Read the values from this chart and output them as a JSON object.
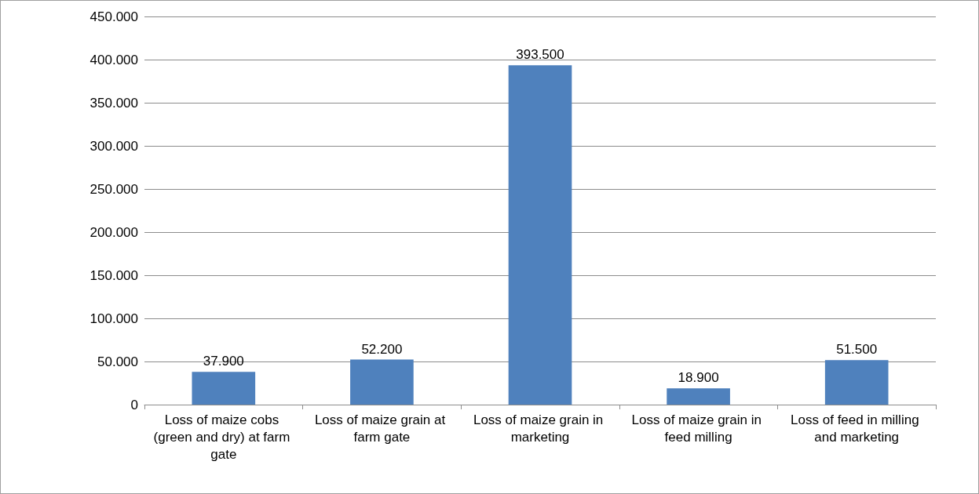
{
  "chart_data": {
    "type": "bar",
    "categories": [
      "Loss of maize cobs (green and dry) at farm gate",
      "Loss of maize grain at farm gate",
      "Loss of maize grain in marketing",
      "Loss of maize grain in feed milling",
      "Loss of feed in milling and marketing"
    ],
    "values": [
      37900,
      52200,
      393500,
      18900,
      51500
    ],
    "value_labels": [
      "37.900",
      "52.200",
      "393.500",
      "18.900",
      "51.500"
    ],
    "color": "#4f81bd",
    "ylim": [
      0,
      450000
    ],
    "yticks": [
      0,
      {
        "value": 50000,
        "label": "50.000"
      },
      {
        "value": 100000,
        "label": "100.000"
      },
      {
        "value": 150000,
        "label": "150.000"
      },
      {
        "value": 200000,
        "label": "200.000"
      },
      {
        "value": 250000,
        "label": "250.000"
      },
      {
        "value": 300000,
        "label": "300.000"
      },
      {
        "value": 350000,
        "label": "350.000"
      },
      {
        "value": 400000,
        "label": "400.000"
      },
      {
        "value": 450000,
        "label": "450.000"
      }
    ],
    "grid": "y"
  }
}
